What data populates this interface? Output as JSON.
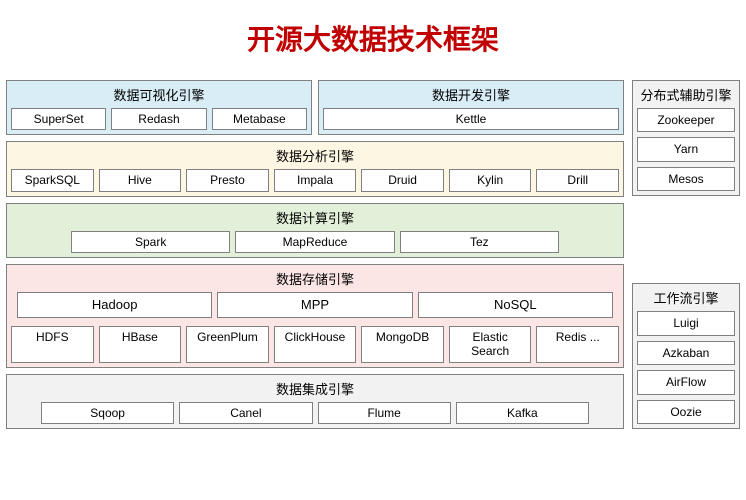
{
  "title": "开源大数据技术框架",
  "colors": {
    "title": "#c00000",
    "item_bg": "#ffffff",
    "item_border": "#808080",
    "box_border": "#808080",
    "bg_blue": "#d9edf7",
    "bg_cream": "#fdf6e3",
    "bg_green": "#e2f0d9",
    "bg_pink": "#fbe5e5",
    "bg_gray": "#f2f2f2"
  },
  "sections": {
    "visualization": {
      "label": "数据可视化引擎",
      "items": [
        "SuperSet",
        "Redash",
        "Metabase"
      ]
    },
    "development": {
      "label": "数据开发引擎",
      "items": [
        "Kettle"
      ]
    },
    "analysis": {
      "label": "数据分析引擎",
      "items": [
        "SparkSQL",
        "Hive",
        "Presto",
        "Impala",
        "Druid",
        "Kylin",
        "Drill"
      ]
    },
    "compute": {
      "label": "数据计算引擎",
      "items": [
        "Spark",
        "MapReduce",
        "Tez"
      ]
    },
    "storage": {
      "label": "数据存储引擎",
      "row1": [
        "Hadoop",
        "MPP",
        "NoSQL"
      ],
      "row2": [
        "HDFS",
        "HBase",
        "GreenPlum",
        "ClickHouse",
        "MongoDB",
        "Elastic Search",
        "Redis ..."
      ]
    },
    "integration": {
      "label": "数据集成引擎",
      "items": [
        "Sqoop",
        "Canel",
        "Flume",
        "Kafka"
      ]
    },
    "distributed": {
      "label": "分布式辅助引擎",
      "items": [
        "Zookeeper",
        "Yarn",
        "Mesos"
      ]
    },
    "workflow": {
      "label": "工作流引擎",
      "items": [
        "Luigi",
        "Azkaban",
        "AirFlow",
        "Oozie"
      ]
    }
  },
  "styling": {
    "title_fontsize": 28,
    "section_label_fontsize": 13,
    "item_fontsize": 12,
    "gap": 6
  }
}
